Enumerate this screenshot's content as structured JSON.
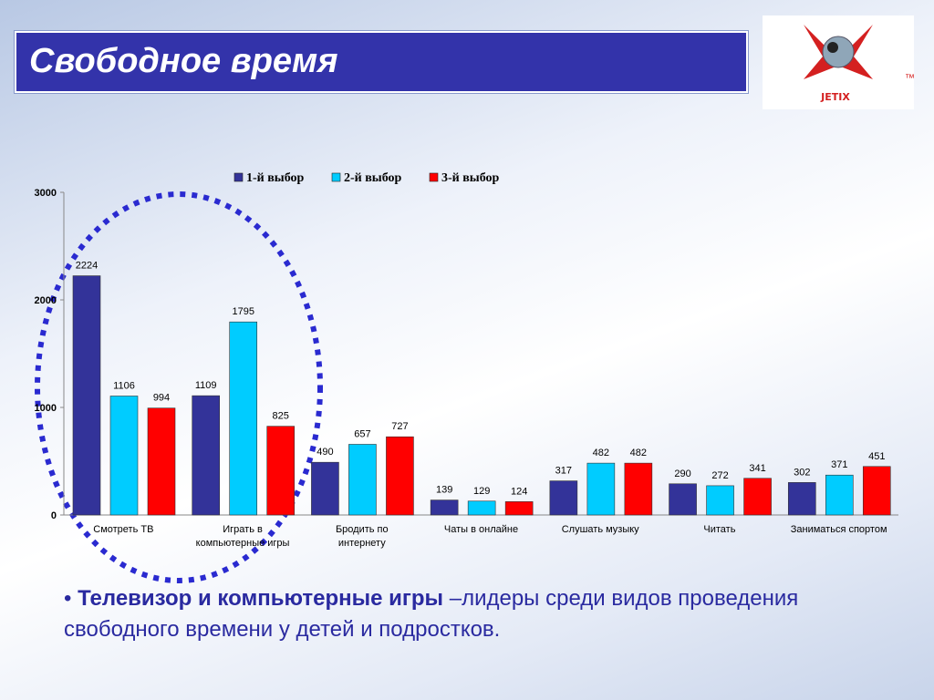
{
  "header": {
    "title": "Свободное время"
  },
  "logo": {
    "text": "JETIX",
    "mark": "™"
  },
  "chart_data": {
    "type": "bar",
    "categories": [
      "Смотреть ТВ",
      "Играть в компьютерные игры",
      "Бродить по интернету",
      "Чаты в онлайне",
      "Слушать музыку",
      "Читать",
      "Заниматься спортом"
    ],
    "series": [
      {
        "name": "1-й выбор",
        "color": "#333399",
        "values": [
          2224,
          1109,
          490,
          139,
          317,
          290,
          302
        ]
      },
      {
        "name": "2-й выбор",
        "color": "#00ccff",
        "values": [
          1106,
          1795,
          657,
          129,
          482,
          272,
          371
        ]
      },
      {
        "name": "3-й выбор",
        "color": "#ff0000",
        "values": [
          994,
          825,
          727,
          124,
          482,
          341,
          451
        ]
      }
    ],
    "ylim": [
      0,
      3000
    ],
    "yticks": [
      0,
      1000,
      2000,
      3000
    ],
    "grid": false,
    "legend": "top"
  },
  "bullet": {
    "bold": "Телевизор и компьютерные игры",
    "text": "–лидеры среди видов проведения свободного времени у детей и подростков."
  }
}
